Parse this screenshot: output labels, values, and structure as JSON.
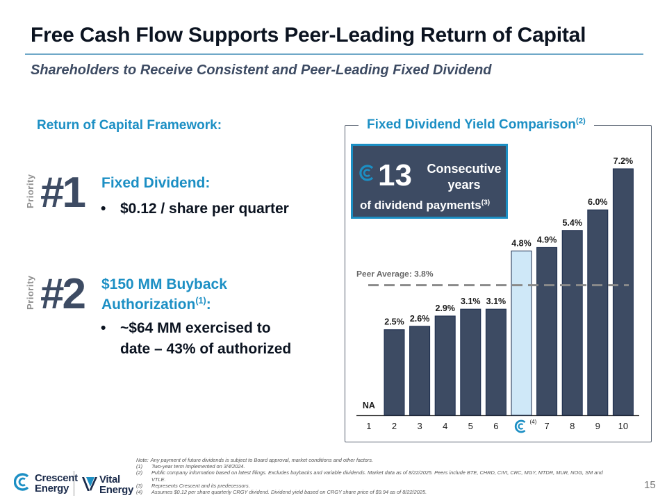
{
  "title": "Free Cash Flow Supports Peer-Leading Return of Capital",
  "subtitle": "Shareholders to Receive Consistent and Peer-Leading Fixed Dividend",
  "framework": {
    "heading": "Return of Capital Framework:",
    "priority_label": "Priority",
    "items": [
      {
        "rank": "#1",
        "head": "Fixed Dividend:",
        "bullet": "$0.12 / share per quarter"
      },
      {
        "rank": "#2",
        "head_line1": "$150 MM Buyback",
        "head_line2": "Authorization",
        "head_sup": "(1)",
        "head_suffix": ":",
        "bullet_line1": "~$64 MM exercised to",
        "bullet_line2": "date – 43% of authorized"
      }
    ],
    "bullet_char": "•"
  },
  "badge": {
    "number": "13",
    "consecutive": "Consecutive",
    "years": "years",
    "payments": "of dividend payments",
    "payments_sup": "(3)"
  },
  "colors": {
    "accent": "#1c8fc4",
    "navy": "#3d4b63",
    "highlight_bar": "#cfe8f8"
  },
  "chart_data": {
    "type": "bar",
    "title": "Fixed Dividend Yield Comparison",
    "title_sup": "(2)",
    "categories": [
      "1",
      "2",
      "3",
      "4",
      "5",
      "6",
      "",
      "7",
      "8",
      "9",
      "10"
    ],
    "values": [
      null,
      2.5,
      2.6,
      2.9,
      3.1,
      3.1,
      4.8,
      4.9,
      5.4,
      6.0,
      7.2
    ],
    "labels": [
      "NA",
      "2.5%",
      "2.6%",
      "2.9%",
      "3.1%",
      "3.1%",
      "4.8%",
      "4.9%",
      "5.4%",
      "6.0%",
      "7.2%"
    ],
    "highlight_index": 6,
    "highlight_note": "(4)",
    "reference_line": {
      "label": "Peer Average: 3.8%",
      "value": 3.8
    },
    "ylim": [
      0,
      8
    ],
    "xlabel": "",
    "ylabel": ""
  },
  "footnotes": [
    {
      "marker": "Note:",
      "text": "Any payment of future dividends is subject to Board approval, market conditions and other factors."
    },
    {
      "marker": "(1)",
      "text": "Two-year term implemented on 3/4/2024."
    },
    {
      "marker": "(2)",
      "text": "Public company information based on latest filings. Excludes buybacks and variable dividends. Market data as of 8/22/2025. Peers include BTE, CHRD, CIVI, CRC, MGY, MTDR, MUR, NOG, SM and VTLE."
    },
    {
      "marker": "(3)",
      "text": "Represents Crescent and its predecessors."
    },
    {
      "marker": "(4)",
      "text": "Assumes $0.12 per share quarterly CRGY dividend. Dividend yield based on CRGY share price of $9.94 as of 8/22/2025."
    }
  ],
  "brands": {
    "crescent_line1": "Crescent",
    "crescent_line2": "Energy",
    "vital_line1": "Vital",
    "vital_line2": "Energy"
  },
  "page_number": "15"
}
